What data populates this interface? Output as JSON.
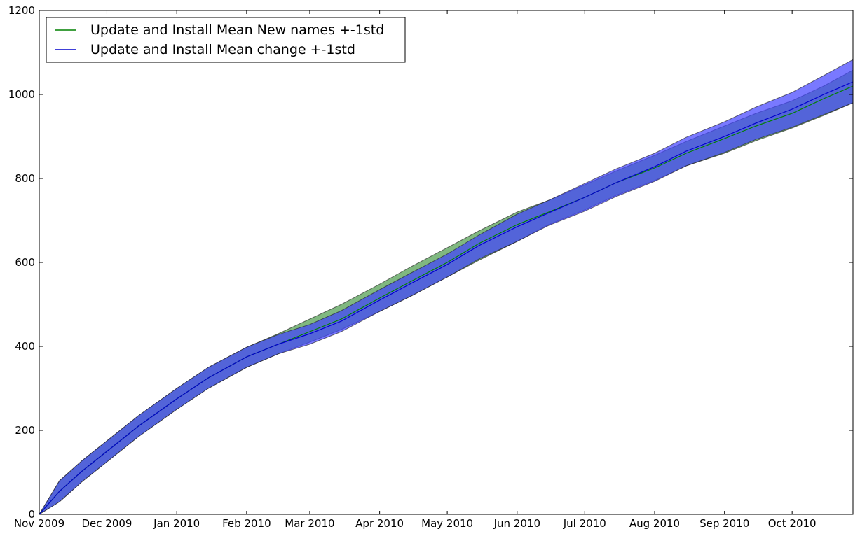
{
  "chart_data": {
    "type": "area",
    "title": "",
    "xlabel": "",
    "ylabel": "",
    "x_tick_labels": [
      "Nov 2009",
      "Dec 2009",
      "Jan 2010",
      "Feb 2010",
      "Mar 2010",
      "Apr 2010",
      "May 2010",
      "Jun 2010",
      "Jul 2010",
      "Aug 2010",
      "Sep 2010",
      "Oct 2010"
    ],
    "x_tick_dates": [
      "2009-11-01",
      "2009-12-01",
      "2010-01-01",
      "2010-02-01",
      "2010-03-01",
      "2010-04-01",
      "2010-05-01",
      "2010-06-01",
      "2010-07-01",
      "2010-08-01",
      "2010-09-01",
      "2010-10-01"
    ],
    "xlim": [
      "2009-11-01",
      "2010-10-28"
    ],
    "ylim": [
      0,
      1200
    ],
    "y_ticks": [
      0,
      200,
      400,
      600,
      800,
      1000,
      1200
    ],
    "grid": false,
    "legend_position": "top-left",
    "series": [
      {
        "name": "Update and Install Mean New names +-1std",
        "color": "#008000",
        "band_color": "#4a9a4a",
        "x": [
          "2009-11-01",
          "2009-11-10",
          "2009-11-20",
          "2009-12-01",
          "2009-12-15",
          "2010-01-01",
          "2010-01-15",
          "2010-02-01",
          "2010-02-15",
          "2010-03-01",
          "2010-03-15",
          "2010-04-01",
          "2010-04-15",
          "2010-05-01",
          "2010-05-15",
          "2010-06-01",
          "2010-06-15",
          "2010-07-01",
          "2010-07-15",
          "2010-08-01",
          "2010-08-15",
          "2010-09-01",
          "2010-09-15",
          "2010-10-01",
          "2010-10-15",
          "2010-10-28"
        ],
        "mean": [
          0,
          55,
          103,
          150,
          210,
          275,
          325,
          375,
          405,
          435,
          465,
          515,
          555,
          600,
          645,
          690,
          720,
          755,
          790,
          825,
          860,
          895,
          925,
          955,
          990,
          1020
        ],
        "upper": [
          0,
          80,
          128,
          175,
          235,
          300,
          350,
          398,
          430,
          465,
          500,
          548,
          590,
          635,
          675,
          720,
          748,
          785,
          818,
          855,
          888,
          925,
          955,
          985,
          1020,
          1058
        ],
        "lower": [
          0,
          30,
          78,
          125,
          185,
          250,
          300,
          350,
          382,
          410,
          440,
          483,
          520,
          565,
          605,
          650,
          690,
          725,
          760,
          795,
          830,
          860,
          890,
          920,
          950,
          980
        ]
      },
      {
        "name": "Update and Install Mean change +-1std",
        "color": "#0000cc",
        "band_color": "#4040ff",
        "x": [
          "2009-11-01",
          "2009-11-10",
          "2009-11-20",
          "2009-12-01",
          "2009-12-15",
          "2010-01-01",
          "2010-01-15",
          "2010-02-01",
          "2010-02-15",
          "2010-03-01",
          "2010-03-15",
          "2010-04-01",
          "2010-04-15",
          "2010-05-01",
          "2010-05-15",
          "2010-06-01",
          "2010-06-15",
          "2010-07-01",
          "2010-07-15",
          "2010-08-01",
          "2010-08-15",
          "2010-09-01",
          "2010-09-15",
          "2010-10-01",
          "2010-10-15",
          "2010-10-28"
        ],
        "mean": [
          0,
          55,
          103,
          150,
          210,
          275,
          325,
          375,
          405,
          430,
          460,
          510,
          550,
          595,
          640,
          685,
          718,
          755,
          790,
          828,
          865,
          900,
          932,
          965,
          1000,
          1030
        ],
        "upper": [
          0,
          80,
          128,
          175,
          235,
          300,
          350,
          398,
          428,
          452,
          485,
          535,
          575,
          620,
          665,
          715,
          748,
          788,
          823,
          860,
          898,
          935,
          970,
          1005,
          1045,
          1083
        ],
        "lower": [
          0,
          30,
          78,
          125,
          185,
          250,
          300,
          350,
          382,
          405,
          435,
          483,
          520,
          565,
          608,
          650,
          688,
          722,
          757,
          793,
          830,
          862,
          893,
          922,
          952,
          980
        ]
      }
    ]
  }
}
